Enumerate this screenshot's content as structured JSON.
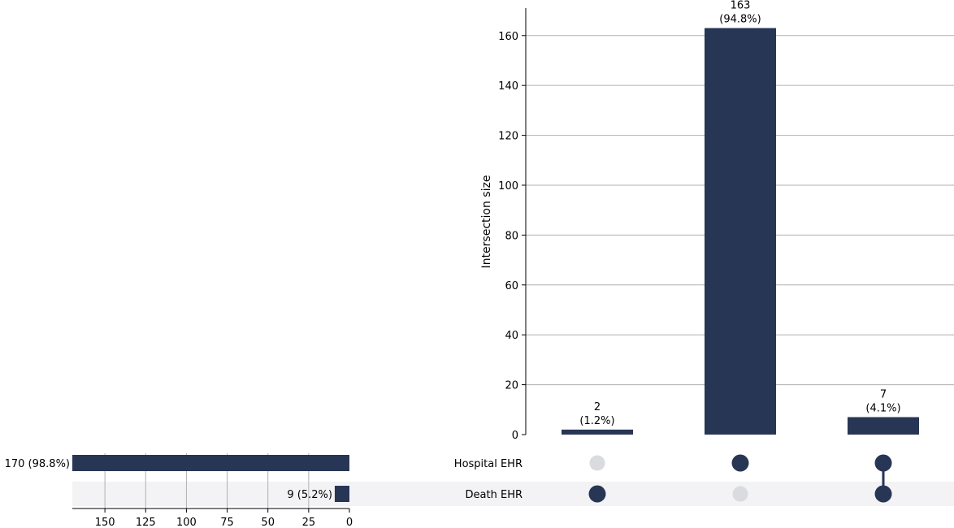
{
  "chart_data": {
    "type": "upset",
    "ylabel": "Intersection size",
    "ylim": [
      0,
      171
    ],
    "yticks": [
      0,
      20,
      40,
      60,
      80,
      100,
      120,
      140,
      160
    ],
    "sets": [
      {
        "name": "Hospital EHR",
        "size": 170,
        "size_label": "170 (98.8%)"
      },
      {
        "name": "Death EHR",
        "size": 9,
        "size_label": "9 (5.2%)"
      }
    ],
    "set_size_xlim": [
      0,
      170
    ],
    "set_size_ticks": [
      0,
      25,
      50,
      75,
      100,
      125,
      150
    ],
    "intersections": [
      {
        "members": [
          false,
          true
        ],
        "value": 2,
        "label_count": "2",
        "label_pct": "(1.2%)"
      },
      {
        "members": [
          true,
          false
        ],
        "value": 163,
        "label_count": "163",
        "label_pct": "(94.8%)"
      },
      {
        "members": [
          true,
          true
        ],
        "value": 7,
        "label_count": "7",
        "label_pct": "(4.1%)"
      }
    ],
    "grid": true,
    "colors": {
      "bar": "#283655",
      "dot_active": "#283655",
      "dot_inactive": "#d9dbdf",
      "grid": "#b0b0b0",
      "row_shade": "#f3f3f5"
    }
  }
}
